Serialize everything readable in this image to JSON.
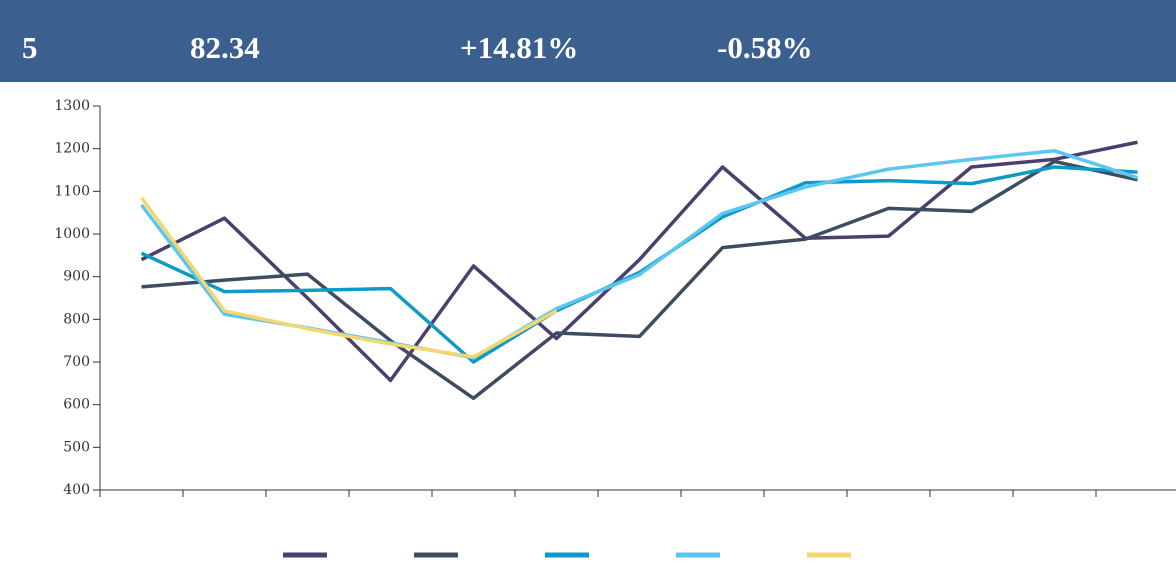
{
  "header": {
    "items": [
      "5",
      "82.34",
      "+14.81%",
      "-0.58%"
    ]
  },
  "chart_data": {
    "type": "line",
    "categories": [
      null,
      null,
      null,
      null,
      null,
      null,
      null,
      null,
      null,
      null,
      null,
      null,
      null
    ],
    "series": [
      {
        "color": "#4b3f6e",
        "values": [
          940,
          1037,
          850,
          657,
          925,
          755,
          940,
          1157,
          990,
          995,
          1157,
          1175,
          1215
        ]
      },
      {
        "color": "#3e4c62",
        "values": [
          876,
          892,
          906,
          750,
          615,
          768,
          760,
          968,
          988,
          1060,
          1053,
          1170,
          1127
        ]
      },
      {
        "color": "#0e9ac6",
        "values": [
          955,
          865,
          868,
          872,
          700,
          820,
          910,
          1040,
          1120,
          1125,
          1118,
          1157,
          1145
        ]
      },
      {
        "color": "#5cc6f3",
        "values": [
          1068,
          812,
          780,
          745,
          710,
          825,
          905,
          1048,
          1110,
          1152,
          1175,
          1195,
          1132
        ]
      },
      {
        "color": "#f6d76d",
        "values": [
          1085,
          820,
          778,
          742,
          712,
          820,
          null,
          null,
          null,
          null,
          null,
          null,
          null
        ]
      }
    ],
    "ylim": [
      400,
      1300
    ],
    "yticks": [
      400,
      500,
      600,
      700,
      800,
      900,
      1000,
      1100,
      1200,
      1300
    ]
  }
}
